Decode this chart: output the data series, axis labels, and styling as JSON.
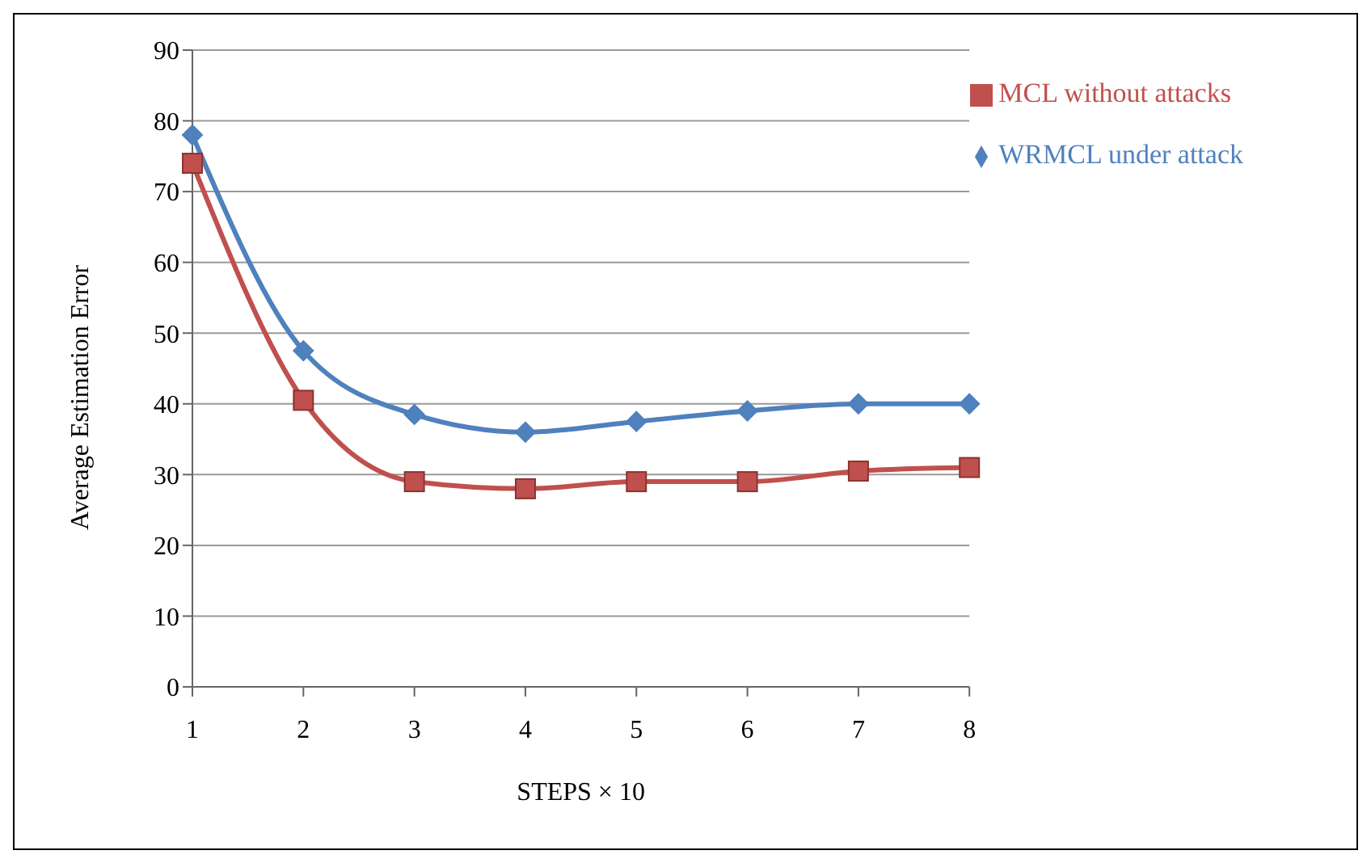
{
  "chart_data": {
    "type": "line",
    "xlabel": "STEPS × 10",
    "ylabel": "Average Estimation Error",
    "categories": [
      "1",
      "2",
      "3",
      "4",
      "5",
      "6",
      "7",
      "8"
    ],
    "series": [
      {
        "name": "WRMCL under attack",
        "color": "#4f81bd",
        "marker": "diamond",
        "values": [
          78,
          47.5,
          38.5,
          36,
          37.5,
          39,
          40,
          40
        ]
      },
      {
        "name": "MCL without attacks",
        "color": "#c0504d",
        "marker": "square",
        "values": [
          74,
          40.5,
          29,
          28,
          29,
          29,
          30.5,
          31
        ]
      }
    ],
    "ylim": [
      0,
      90
    ],
    "yticks": [
      0,
      10,
      20,
      30,
      40,
      50,
      60,
      70,
      80,
      90
    ],
    "grid": "y",
    "legend": "top right"
  }
}
